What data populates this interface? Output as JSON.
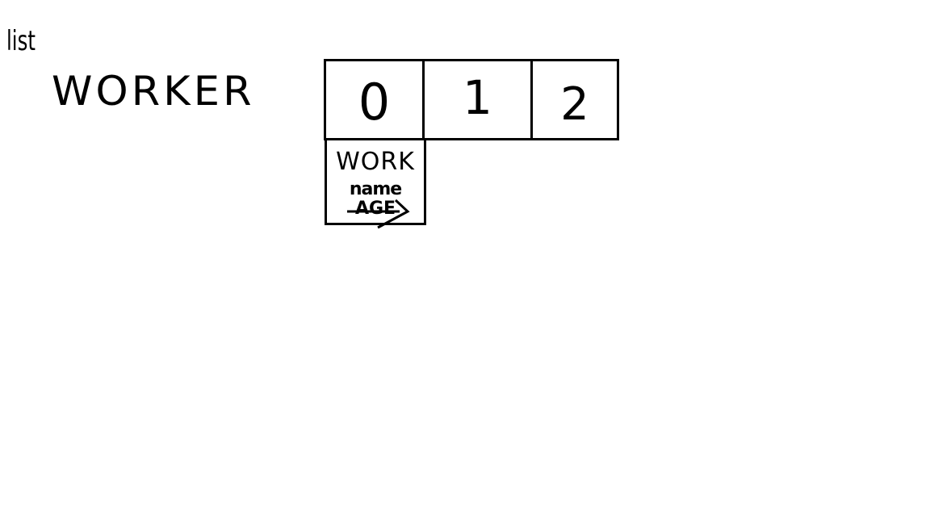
{
  "labels": {
    "list_keyword": "list",
    "type_name": "WORKER"
  },
  "array": {
    "indices": [
      "0",
      "1",
      "2"
    ]
  },
  "object": {
    "class_name": "WORK",
    "fields": [
      "name",
      "AGE"
    ]
  },
  "colors": {
    "ink": "#000000",
    "background": "#ffffff"
  }
}
